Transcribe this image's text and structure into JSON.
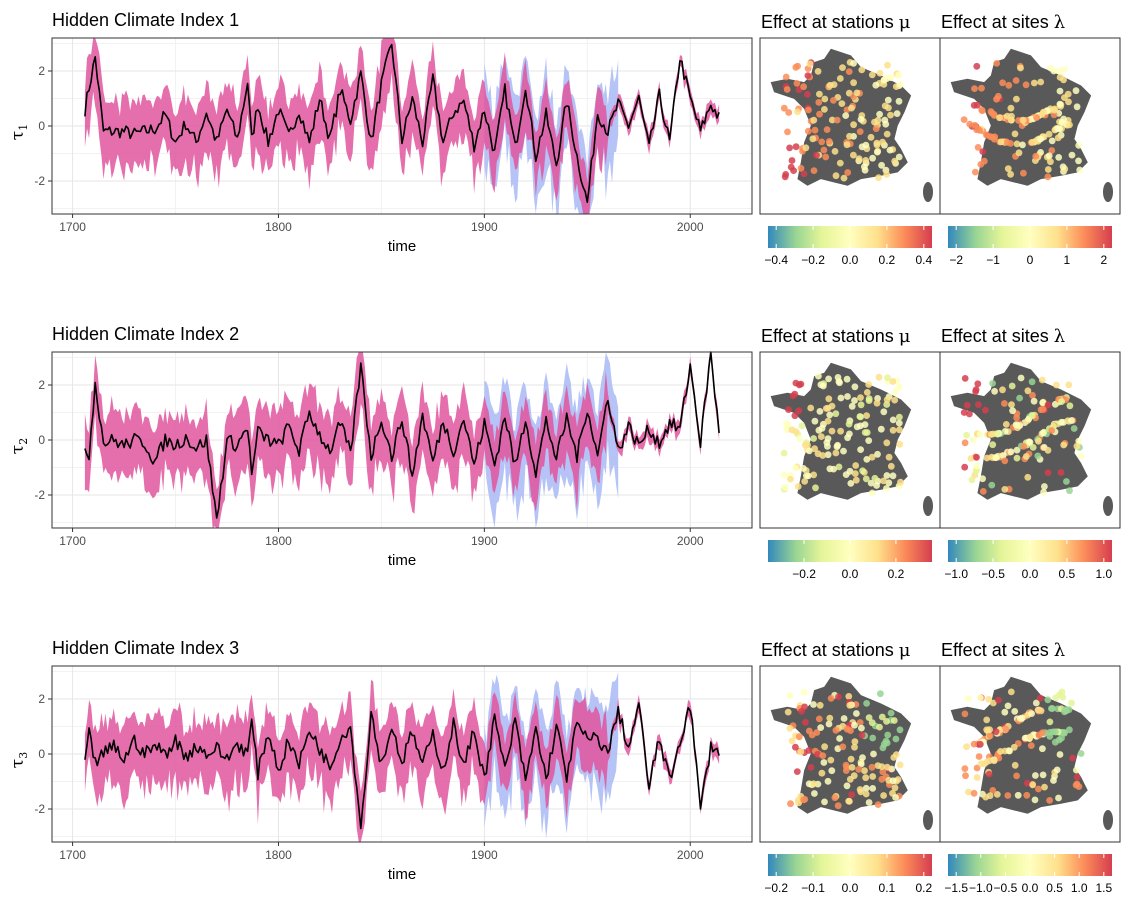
{
  "colors": {
    "ci_pink": "#e0559d",
    "ci_blue": "#a8b9f5",
    "median": "#000000",
    "map_land": "#595959",
    "grid_major": "#e6e6e6",
    "grid_minor": "#f2f2f2",
    "palette": [
      "#3288bd",
      "#99d594",
      "#e6f598",
      "#ffffbf",
      "#fee08b",
      "#fc8d59",
      "#d53e4f"
    ]
  },
  "chart_data": [
    {
      "type": "line",
      "title": "Hidden Climate Index 1",
      "xlabel": "time",
      "ylabel_symbol": "τ",
      "ylabel_sub": "1",
      "xlim": [
        1690,
        2030
      ],
      "ylim": [
        -3.2,
        3.2
      ],
      "xticks": [
        "1700",
        "1800",
        "1900",
        "2000"
      ],
      "yticks": [
        "2",
        "0",
        "-2"
      ],
      "series": [
        {
          "x": [
            1706,
            1708,
            1711,
            1715,
            1720,
            1725,
            1730,
            1735,
            1740,
            1745,
            1750,
            1755,
            1760,
            1765,
            1770,
            1775,
            1780,
            1785,
            1787,
            1790,
            1795,
            1800,
            1805,
            1810,
            1815,
            1820,
            1825,
            1830,
            1835,
            1840,
            1845,
            1850,
            1855,
            1860,
            1865,
            1870,
            1875,
            1880,
            1885,
            1890,
            1895,
            1900,
            1905,
            1910,
            1915,
            1920,
            1925,
            1930,
            1935,
            1940,
            1945,
            1950,
            1955,
            1960,
            1965,
            1970,
            1975,
            1980,
            1985,
            1990,
            1995,
            2000,
            2005,
            2010,
            2014
          ],
          "values": [
            0.6,
            1.4,
            2.5,
            -0.2,
            -0.2,
            -0.2,
            -0.3,
            -0.2,
            -0.1,
            0.4,
            -0.6,
            0.1,
            -0.6,
            0.5,
            -0.6,
            0.6,
            -0.5,
            1.6,
            -0.5,
            0.8,
            -0.6,
            0.6,
            -0.4,
            0.6,
            -0.6,
            1.0,
            -0.5,
            1.3,
            0.2,
            1.9,
            -0.6,
            1.5,
            3.0,
            -0.5,
            1.0,
            -0.6,
            1.7,
            -0.6,
            0.5,
            0.9,
            -0.7,
            0.6,
            -1.0,
            1.3,
            -0.8,
            1.5,
            -1.1,
            0.4,
            -1.4,
            0.9,
            -1.1,
            -2.8,
            0.5,
            -0.2,
            0.8,
            0.0,
            1.0,
            -0.8,
            1.1,
            -0.6,
            2.5,
            1.0,
            -0.2,
            0.8,
            0.3
          ]
        }
      ]
    },
    {
      "type": "line",
      "title": "Hidden Climate Index 2",
      "xlabel": "time",
      "ylabel_symbol": "τ",
      "ylabel_sub": "2",
      "xlim": [
        1690,
        2030
      ],
      "ylim": [
        -3.2,
        3.2
      ],
      "xticks": [
        "1700",
        "1800",
        "1900",
        "2000"
      ],
      "yticks": [
        "2",
        "0",
        "-2"
      ],
      "series": [
        {
          "x": [
            1706,
            1708,
            1711,
            1715,
            1720,
            1725,
            1730,
            1735,
            1740,
            1745,
            1750,
            1755,
            1760,
            1765,
            1770,
            1775,
            1780,
            1785,
            1787,
            1790,
            1795,
            1800,
            1805,
            1810,
            1815,
            1820,
            1825,
            1830,
            1835,
            1840,
            1845,
            1850,
            1855,
            1860,
            1865,
            1870,
            1875,
            1880,
            1885,
            1890,
            1895,
            1900,
            1905,
            1910,
            1915,
            1920,
            1925,
            1930,
            1935,
            1940,
            1945,
            1950,
            1955,
            1960,
            1965,
            1970,
            1975,
            1980,
            1985,
            1990,
            1995,
            2000,
            2005,
            2010,
            2014
          ],
          "values": [
            -0.3,
            -0.5,
            2.1,
            -0.1,
            0.0,
            -0.2,
            0.0,
            -0.1,
            -0.8,
            0.0,
            -0.2,
            0.1,
            -0.3,
            0.0,
            -2.9,
            0.0,
            -0.2,
            0.5,
            -1.3,
            0.3,
            0.0,
            -0.2,
            0.5,
            -0.4,
            1.0,
            0.2,
            -0.4,
            0.6,
            -0.5,
            2.7,
            -0.6,
            0.8,
            -0.6,
            0.8,
            -1.3,
            0.9,
            -0.8,
            0.7,
            -0.4,
            0.8,
            -0.9,
            0.6,
            -0.9,
            0.9,
            -1.0,
            0.8,
            -1.2,
            0.7,
            -0.7,
            0.8,
            -0.6,
            1.2,
            -0.6,
            1.6,
            -0.4,
            0.5,
            -0.2,
            0.4,
            -0.1,
            0.6,
            0.4,
            2.7,
            -0.1,
            3.2,
            0.2
          ]
        }
      ]
    },
    {
      "type": "line",
      "title": "Hidden Climate Index 3",
      "xlabel": "time",
      "ylabel_symbol": "τ",
      "ylabel_sub": "3",
      "xlim": [
        1690,
        2030
      ],
      "ylim": [
        -3.2,
        3.2
      ],
      "xticks": [
        "1700",
        "1800",
        "1900",
        "2000"
      ],
      "yticks": [
        "2",
        "0",
        "-2"
      ],
      "series": [
        {
          "x": [
            1706,
            1708,
            1711,
            1715,
            1720,
            1725,
            1730,
            1735,
            1740,
            1745,
            1750,
            1755,
            1760,
            1765,
            1770,
            1775,
            1780,
            1785,
            1787,
            1790,
            1795,
            1800,
            1805,
            1810,
            1815,
            1820,
            1825,
            1830,
            1835,
            1840,
            1845,
            1850,
            1855,
            1860,
            1865,
            1870,
            1875,
            1880,
            1885,
            1890,
            1895,
            1900,
            1905,
            1910,
            1915,
            1920,
            1925,
            1930,
            1935,
            1940,
            1945,
            1950,
            1955,
            1960,
            1965,
            1970,
            1975,
            1980,
            1985,
            1990,
            1995,
            2000,
            2005,
            2010,
            2014
          ],
          "values": [
            -0.4,
            0.7,
            -0.3,
            0.0,
            0.3,
            -0.2,
            0.5,
            0.0,
            0.3,
            0.0,
            0.5,
            -0.1,
            0.3,
            0.0,
            0.2,
            -0.2,
            0.4,
            0.0,
            1.2,
            -0.7,
            0.8,
            -0.6,
            0.5,
            -0.4,
            0.9,
            0.2,
            -0.5,
            0.6,
            1.0,
            -2.7,
            1.5,
            -0.4,
            1.0,
            -0.3,
            0.8,
            -0.4,
            0.7,
            -0.6,
            1.1,
            -0.5,
            0.9,
            -0.9,
            1.3,
            -0.6,
            1.2,
            -1.0,
            0.9,
            -0.9,
            1.0,
            -0.8,
            1.1,
            0.5,
            0.6,
            0.0,
            1.6,
            0.2,
            1.8,
            -1.2,
            0.6,
            -1.0,
            0.5,
            1.8,
            -2.0,
            0.3,
            0.1
          ]
        }
      ]
    }
  ],
  "maps": [
    {
      "left_title_text": "Effect at stations ",
      "left_title_symbol": "μ",
      "right_title_text": "Effect at sites ",
      "right_title_symbol": "λ",
      "left_ticks": [
        "−0.4",
        "−0.2",
        "0.0",
        "0.2",
        "0.4"
      ],
      "right_ticks": [
        "−2",
        "−1",
        "0",
        "1",
        "2"
      ]
    },
    {
      "left_title_text": "Effect at stations ",
      "left_title_symbol": "μ",
      "right_title_text": "Effect at sites ",
      "right_title_symbol": "λ",
      "left_ticks": [
        "−0.2",
        "0.0",
        "0.2"
      ],
      "right_ticks": [
        "−1.0",
        "−0.5",
        "0.0",
        "0.5",
        "1.0"
      ]
    },
    {
      "left_title_text": "Effect at stations ",
      "left_title_symbol": "μ",
      "right_title_text": "Effect at sites ",
      "right_title_symbol": "λ",
      "left_ticks": [
        "−0.2",
        "−0.1",
        "0.0",
        "0.1",
        "0.2"
      ],
      "right_ticks": [
        "−1.5",
        "−1.0",
        "−0.5",
        "0.0",
        "0.5",
        "1.0",
        "1.5"
      ]
    }
  ]
}
